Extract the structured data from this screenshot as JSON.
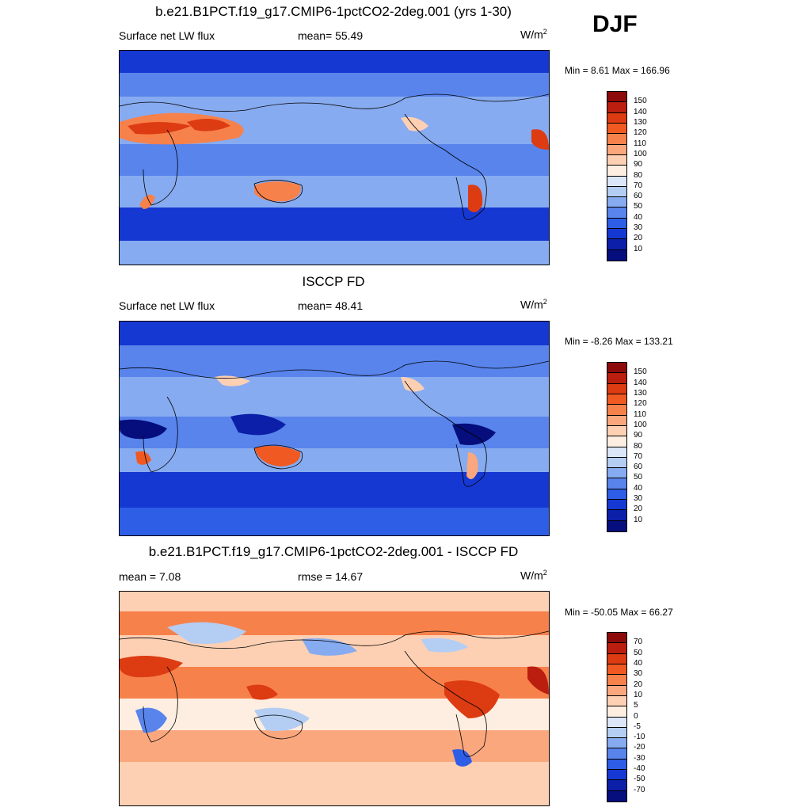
{
  "season": "DJF",
  "panels": [
    {
      "title": "b.e21.B1PCT.f19_g17.CMIP6-1pctCO2-2deg.001 (yrs 1-30)",
      "left_label": "Surface net LW flux",
      "mid_label": "mean=  55.49",
      "units": "W/m",
      "units_sup": "2",
      "minmax": "Min =   8.61 Max = 166.96",
      "colorbar": {
        "ticks": [
          "150",
          "140",
          "130",
          "120",
          "110",
          "100",
          "90",
          "80",
          "70",
          "60",
          "50",
          "40",
          "30",
          "20",
          "10"
        ],
        "colors": [
          "#8c0a0a",
          "#bb1e0e",
          "#dd3b12",
          "#f05a22",
          "#f7814b",
          "#fba77e",
          "#fdd0b4",
          "#fdeee1",
          "#dbe7f8",
          "#b4cdf3",
          "#87abf0",
          "#5884ec",
          "#2e5ee6",
          "#1638d2",
          "#0b1fa8",
          "#050e7c"
        ]
      }
    },
    {
      "title": "ISCCP FD",
      "left_label": "Surface net LW flux",
      "mid_label": "mean=  48.41",
      "units": "W/m",
      "units_sup": "2",
      "minmax": "Min =  -8.26 Max = 133.21",
      "colorbar": {
        "ticks": [
          "150",
          "140",
          "130",
          "120",
          "110",
          "100",
          "90",
          "80",
          "70",
          "60",
          "50",
          "40",
          "30",
          "20",
          "10"
        ],
        "colors": [
          "#8c0a0a",
          "#bb1e0e",
          "#dd3b12",
          "#f05a22",
          "#f7814b",
          "#fba77e",
          "#fdd0b4",
          "#fdeee1",
          "#dbe7f8",
          "#b4cdf3",
          "#87abf0",
          "#5884ec",
          "#2e5ee6",
          "#1638d2",
          "#0b1fa8",
          "#050e7c"
        ]
      }
    },
    {
      "title": "b.e21.B1PCT.f19_g17.CMIP6-1pctCO2-2deg.001 - ISCCP FD",
      "left_label": "mean =   7.08",
      "mid_label": "rmse =  14.67",
      "units": "W/m",
      "units_sup": "2",
      "minmax": "Min = -50.05 Max =  66.27",
      "colorbar": {
        "ticks": [
          "70",
          "50",
          "40",
          "30",
          "20",
          "10",
          "5",
          "0",
          "-5",
          "-10",
          "-20",
          "-30",
          "-40",
          "-50",
          "-70"
        ],
        "colors": [
          "#8c0a0a",
          "#bb1e0e",
          "#dd3b12",
          "#f05a22",
          "#f7814b",
          "#fba77e",
          "#fdd0b4",
          "#fdeee1",
          "#dbe7f8",
          "#b4cdf3",
          "#87abf0",
          "#5884ec",
          "#2e5ee6",
          "#1638d2",
          "#0b1fa8",
          "#050e7c"
        ]
      }
    }
  ]
}
